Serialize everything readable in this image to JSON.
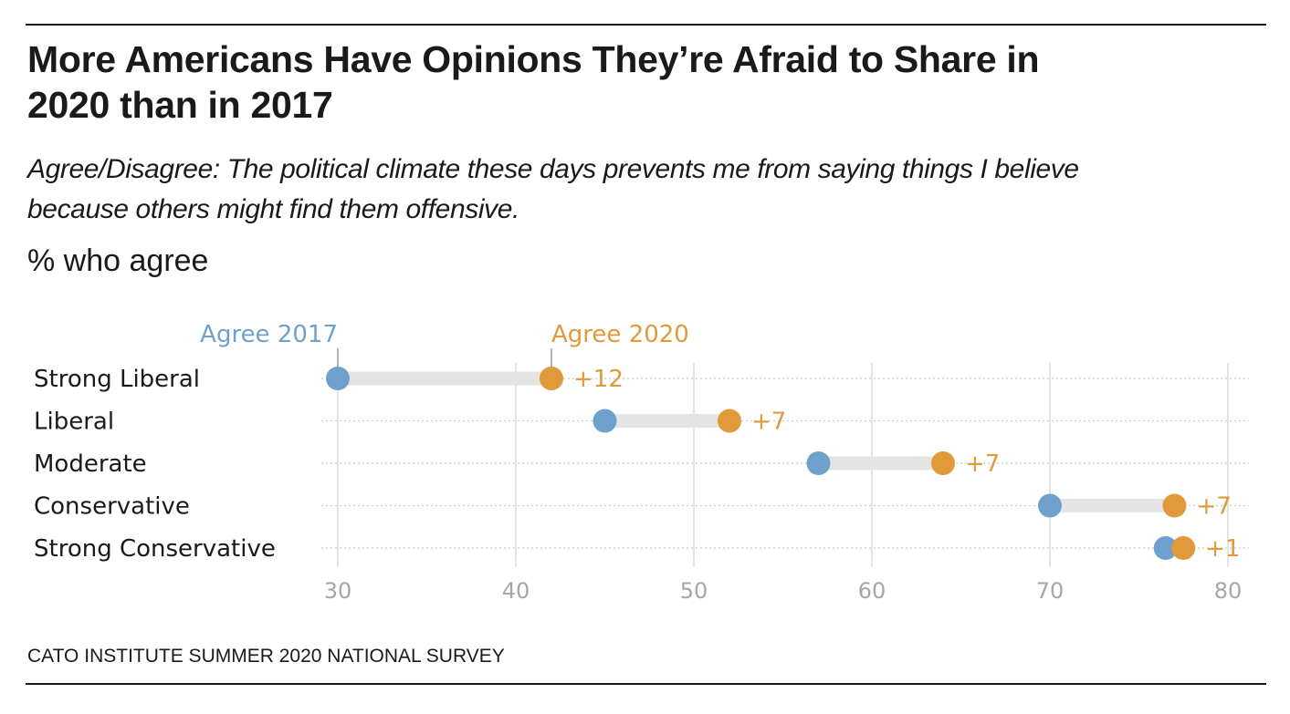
{
  "title": "More Americans Have Opinions They’re Afraid to Share in 2020 than in 2017",
  "subtitle": "Agree/Disagree: The political climate these days prevents me from saying things I believe because others might find them offensive.",
  "unit_label": "% who agree",
  "source": "CATO INSTITUTE SUMMER 2020 NATIONAL SURVEY",
  "colors": {
    "agree_2017": "#6fa1cc",
    "agree_2020": "#e09a3a",
    "bar": "#e4e4e4",
    "grid": "#dcdcdc"
  },
  "chart_data": {
    "type": "dumbbell",
    "title": "More Americans Have Opinions They’re Afraid to Share in 2020 than in 2017",
    "xlabel": "% who agree",
    "ylabel": "",
    "xlim": [
      29,
      81
    ],
    "x_ticks": [
      30,
      40,
      50,
      60,
      70,
      80
    ],
    "categories": [
      "Strong Liberal",
      "Liberal",
      "Moderate",
      "Conservative",
      "Strong Conservative"
    ],
    "series": [
      {
        "name": "Agree 2017",
        "values": [
          30,
          45,
          57,
          70,
          76.5
        ]
      },
      {
        "name": "Agree 2020",
        "values": [
          42,
          52,
          64,
          77,
          77.5
        ]
      }
    ],
    "diff_labels": [
      "+12",
      "+7",
      "+7",
      "+7",
      "+1"
    ],
    "legend": [
      "Agree 2017",
      "Agree 2020"
    ]
  }
}
